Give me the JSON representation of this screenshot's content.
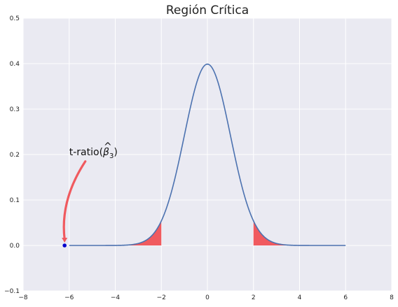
{
  "chart_data": {
    "type": "line",
    "title": "Región Crítica",
    "xlabel": "",
    "ylabel": "",
    "xlim": [
      -8,
      8
    ],
    "ylim": [
      -0.1,
      0.5
    ],
    "xticks": [
      -8,
      -6,
      -4,
      -2,
      0,
      2,
      4,
      6,
      8
    ],
    "yticks": [
      -0.1,
      0.0,
      0.1,
      0.2,
      0.3,
      0.4,
      0.5
    ],
    "xtick_labels": [
      "−8",
      "−6",
      "−4",
      "−2",
      "0",
      "2",
      "4",
      "6",
      "8"
    ],
    "ytick_labels": [
      "−0.1",
      "0.0",
      "0.1",
      "0.2",
      "0.3",
      "0.4",
      "0.5"
    ],
    "grid": true,
    "series": [
      {
        "kind": "normal-pdf",
        "mean": 0,
        "sd": 1,
        "x_range": [
          -6,
          6
        ],
        "color": "#4c72b0"
      }
    ],
    "critical_regions": [
      {
        "x_range": [
          -6,
          -2
        ],
        "color": "#f05a5f"
      },
      {
        "x_range": [
          2,
          6
        ],
        "color": "#f05a5f"
      }
    ],
    "point": {
      "x": -6.2,
      "y": 0.0,
      "color": "#0000cc"
    },
    "annotation": {
      "text_main": "t-ratio(",
      "text_beta": "β",
      "text_hat": "^",
      "text_sub": "3",
      "text_close": ")",
      "text_x": -6.0,
      "text_y": 0.2,
      "arrow_to": [
        -6.2,
        0.0
      ],
      "arrow_color": "#f05a5f"
    },
    "colors": {
      "plot_background": "#eaeaf2",
      "grid": "#ffffff"
    }
  }
}
